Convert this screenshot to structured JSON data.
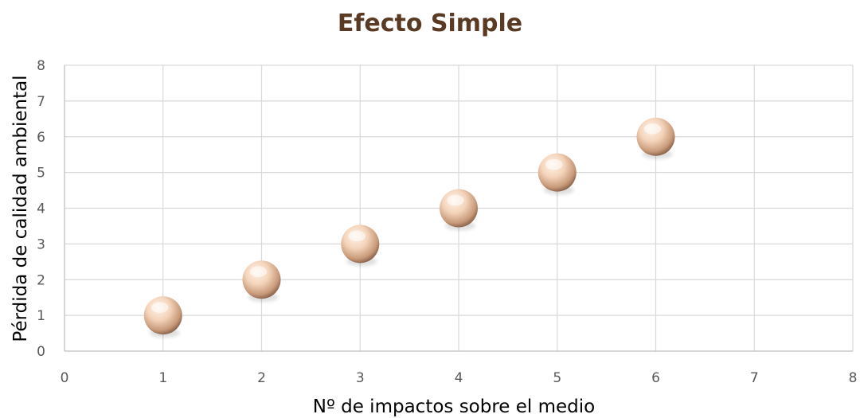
{
  "chart_data": {
    "type": "scatter",
    "title": "Efecto Simple",
    "xlabel": "Nº de impactos sobre el medio",
    "ylabel": "Pérdida de calidad ambiental",
    "xlim": [
      0,
      8
    ],
    "ylim": [
      0,
      8
    ],
    "x_ticks": [
      "0",
      "1",
      "2",
      "3",
      "4",
      "5",
      "6",
      "7",
      "8"
    ],
    "y_ticks": [
      "0",
      "1",
      "2",
      "3",
      "4",
      "5",
      "6",
      "7",
      "8"
    ],
    "grid": true,
    "legend": "none",
    "marker": "3d-sphere",
    "points": [
      {
        "x": 1,
        "y": 1
      },
      {
        "x": 2,
        "y": 2
      },
      {
        "x": 3,
        "y": 3
      },
      {
        "x": 4,
        "y": 4
      },
      {
        "x": 5,
        "y": 5
      },
      {
        "x": 6,
        "y": 6
      }
    ]
  },
  "colors": {
    "title": "#5a3a22",
    "grid": "#d9d9d9",
    "axis": "#bfbfbf",
    "tick_label": "#595959",
    "marker_light": "#fff4ea",
    "marker_mid": "#eec6a8",
    "marker_dark": "#8a6248"
  }
}
